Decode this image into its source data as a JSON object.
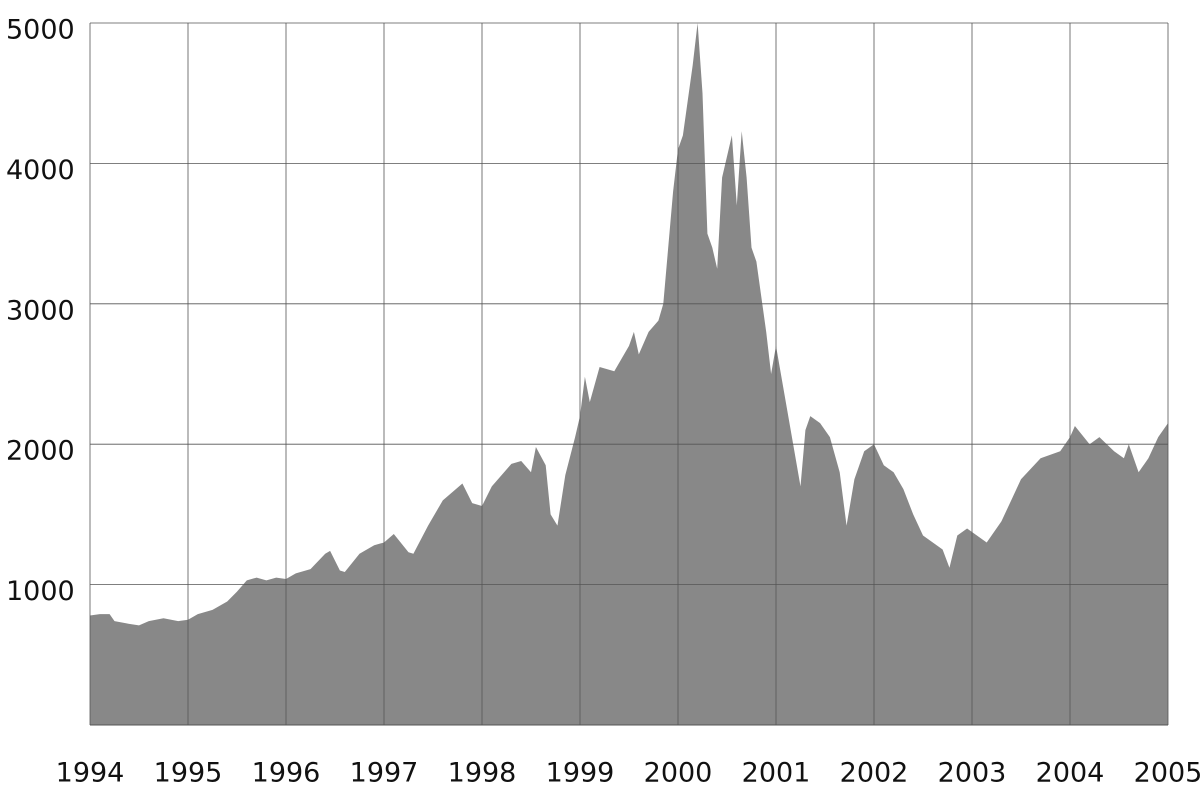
{
  "chart_data": {
    "type": "area",
    "color": "#888888",
    "grid": true,
    "xlim": [
      1994,
      2005
    ],
    "xticks": [
      1994,
      1995,
      1996,
      1997,
      1998,
      1999,
      2000,
      2001,
      2002,
      2003,
      2004,
      2005
    ],
    "ylim": [
      0,
      5000
    ],
    "yticks": [
      1000,
      2000,
      3000,
      4000,
      5000
    ],
    "x": [
      1994.0,
      1994.1,
      1994.2,
      1994.25,
      1994.4,
      1994.5,
      1994.6,
      1994.75,
      1994.9,
      1995.0,
      1995.1,
      1995.25,
      1995.4,
      1995.5,
      1995.6,
      1995.7,
      1995.8,
      1995.9,
      1996.0,
      1996.1,
      1996.25,
      1996.4,
      1996.45,
      1996.55,
      1996.6,
      1996.75,
      1996.9,
      1997.0,
      1997.1,
      1997.25,
      1997.3,
      1997.45,
      1997.6,
      1997.8,
      1997.9,
      1998.0,
      1998.1,
      1998.3,
      1998.4,
      1998.5,
      1998.55,
      1998.65,
      1998.7,
      1998.77,
      1998.85,
      1998.95,
      1999.0,
      1999.05,
      1999.1,
      1999.2,
      1999.35,
      1999.5,
      1999.55,
      1999.6,
      1999.7,
      1999.8,
      1999.85,
      1999.95,
      2000.0,
      2000.05,
      2000.15,
      2000.2,
      2000.25,
      2000.3,
      2000.35,
      2000.4,
      2000.45,
      2000.55,
      2000.6,
      2000.65,
      2000.7,
      2000.75,
      2000.8,
      2000.9,
      2000.95,
      2001.0,
      2001.05,
      2001.15,
      2001.25,
      2001.3,
      2001.35,
      2001.45,
      2001.55,
      2001.65,
      2001.72,
      2001.8,
      2001.9,
      2002.0,
      2002.1,
      2002.2,
      2002.3,
      2002.4,
      2002.5,
      2002.6,
      2002.7,
      2002.77,
      2002.85,
      2002.95,
      2003.05,
      2003.15,
      2003.3,
      2003.4,
      2003.5,
      2003.7,
      2003.9,
      2004.0,
      2004.05,
      2004.2,
      2004.3,
      2004.45,
      2004.55,
      2004.6,
      2004.7,
      2004.8,
      2004.9,
      2005.0
    ],
    "values": [
      780,
      790,
      790,
      740,
      720,
      710,
      740,
      760,
      740,
      750,
      790,
      820,
      880,
      950,
      1030,
      1050,
      1030,
      1050,
      1040,
      1080,
      1110,
      1220,
      1240,
      1100,
      1090,
      1220,
      1280,
      1300,
      1360,
      1230,
      1220,
      1420,
      1600,
      1720,
      1580,
      1560,
      1700,
      1860,
      1880,
      1800,
      1980,
      1850,
      1500,
      1420,
      1780,
      2050,
      2200,
      2480,
      2300,
      2550,
      2520,
      2700,
      2800,
      2640,
      2800,
      2880,
      3000,
      3800,
      4100,
      4200,
      4700,
      5000,
      4500,
      3500,
      3400,
      3250,
      3900,
      4200,
      3700,
      4230,
      3900,
      3400,
      3300,
      2800,
      2500,
      2700,
      2500,
      2100,
      1700,
      2100,
      2200,
      2150,
      2050,
      1800,
      1420,
      1750,
      1950,
      2000,
      1850,
      1800,
      1680,
      1500,
      1350,
      1300,
      1250,
      1120,
      1350,
      1400,
      1350,
      1300,
      1450,
      1600,
      1750,
      1900,
      1950,
      2050,
      2130,
      2000,
      2050,
      1950,
      1900,
      2000,
      1800,
      1900,
      2050,
      2150
    ]
  }
}
